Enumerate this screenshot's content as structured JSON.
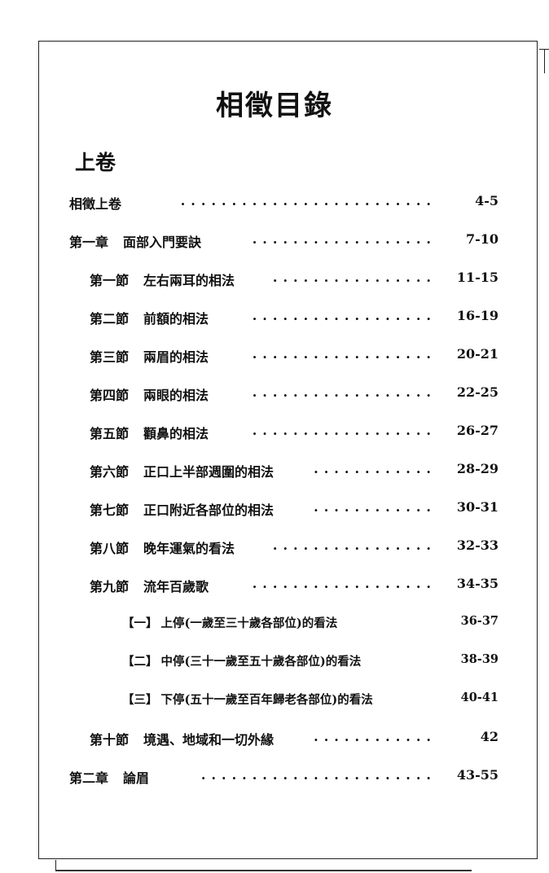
{
  "title": "相徵目錄",
  "volume": "上卷",
  "entries": [
    {
      "prefix": "相徵上卷",
      "text": "",
      "pages": "4-5",
      "level": 0,
      "dots": true
    },
    {
      "prefix": "第一章",
      "text": "面部入門要訣",
      "pages": "7-10",
      "level": 0,
      "dots": true
    },
    {
      "prefix": "第一節",
      "text": "左右兩耳的相法",
      "pages": "11-15",
      "level": 1,
      "dots": true
    },
    {
      "prefix": "第二節",
      "text": "前額的相法",
      "pages": "16-19",
      "level": 1,
      "dots": true
    },
    {
      "prefix": "第三節",
      "text": "兩眉的相法",
      "pages": "20-21",
      "level": 1,
      "dots": true
    },
    {
      "prefix": "第四節",
      "text": "兩眼的相法",
      "pages": "22-25",
      "level": 1,
      "dots": true
    },
    {
      "prefix": "第五節",
      "text": "顴鼻的相法",
      "pages": "26-27",
      "level": 1,
      "dots": true
    },
    {
      "prefix": "第六節",
      "text": "正口上半部週圍的相法",
      "pages": "28-29",
      "level": 1,
      "dots": true
    },
    {
      "prefix": "第七節",
      "text": "正口附近各部位的相法",
      "pages": "30-31",
      "level": 1,
      "dots": true
    },
    {
      "prefix": "第八節",
      "text": "晚年運氣的看法",
      "pages": "32-33",
      "level": 1,
      "dots": true
    },
    {
      "prefix": "第九節",
      "text": "流年百歲歌",
      "pages": "34-35",
      "level": 1,
      "dots": true
    },
    {
      "prefix": "【一】",
      "text": "上停(一歲至三十歲各部位)的看法",
      "pages": "36-37",
      "level": 2,
      "dots": false
    },
    {
      "prefix": "【二】",
      "text": "中停(三十一歲至五十歲各部位)的看法",
      "pages": "38-39",
      "level": 2,
      "dots": false
    },
    {
      "prefix": "【三】",
      "text": "下停(五十一歲至百年歸老各部位)的看法",
      "pages": "40-41",
      "level": 2,
      "dots": false
    },
    {
      "prefix": "第十節",
      "text": "境遇、地域和一切外緣",
      "pages": "42",
      "level": 1,
      "dots": true
    },
    {
      "prefix": "第二章",
      "text": "論眉",
      "pages": "43-55",
      "level": 0,
      "dots": true
    }
  ]
}
